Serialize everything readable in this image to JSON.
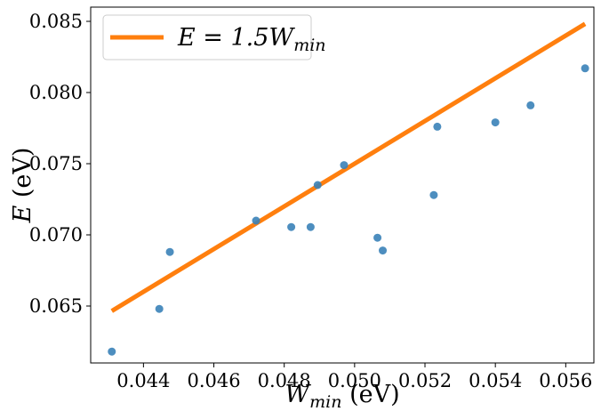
{
  "chart_data": {
    "type": "scatter",
    "title": "",
    "xlabel": {
      "main": "W",
      "sub": "min",
      "unit": " (eV)"
    },
    "ylabel": {
      "main": "E",
      "unit": " (eV)"
    },
    "xlim": [
      0.0425,
      0.0568
    ],
    "ylim": [
      0.061,
      0.086
    ],
    "x_ticks": [
      0.044,
      0.046,
      0.048,
      0.05,
      0.052,
      0.054,
      0.056
    ],
    "x_tick_labels": [
      "0.044",
      "0.046",
      "0.048",
      "0.050",
      "0.052",
      "0.054",
      "0.056"
    ],
    "y_ticks": [
      0.065,
      0.07,
      0.075,
      0.08,
      0.085
    ],
    "y_tick_labels": [
      "0.065",
      "0.070",
      "0.075",
      "0.080",
      "0.085"
    ],
    "grid": false,
    "legend_position": "top-left",
    "series": [
      {
        "kind": "scatter",
        "color": "#3a82b8",
        "points": [
          [
            0.0431,
            0.0618
          ],
          [
            0.04445,
            0.0648
          ],
          [
            0.04475,
            0.0688
          ],
          [
            0.0472,
            0.071
          ],
          [
            0.0482,
            0.07055
          ],
          [
            0.04875,
            0.07055
          ],
          [
            0.04895,
            0.0735
          ],
          [
            0.0497,
            0.0749
          ],
          [
            0.05065,
            0.0698
          ],
          [
            0.0508,
            0.0689
          ],
          [
            0.05225,
            0.0728
          ],
          [
            0.05235,
            0.0776
          ],
          [
            0.054,
            0.0779
          ],
          [
            0.055,
            0.0791
          ],
          [
            0.05655,
            0.0817
          ]
        ]
      },
      {
        "kind": "line",
        "name": {
          "prefix": "E = 1.5W",
          "sub": "min"
        },
        "color": "#ff7f0e",
        "slope": 1.5,
        "x_range": [
          0.0431,
          0.05655
        ]
      }
    ]
  }
}
